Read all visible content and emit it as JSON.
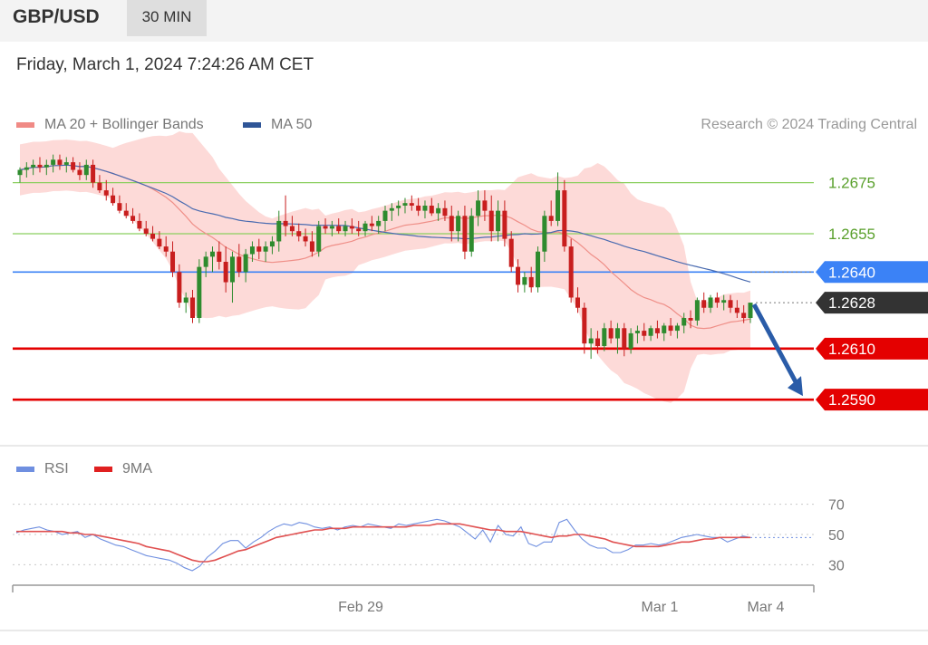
{
  "header": {
    "pair": "GBP/USD",
    "timeframe": "30 MIN",
    "datetime": "Friday, March 1, 2024 7:24:26 AM CET"
  },
  "legend": {
    "ma20": "MA 20 + Bollinger Bands",
    "ma50": "MA 50",
    "credit": "Research © 2024 Trading Central"
  },
  "rsi_legend": {
    "rsi": "RSI",
    "ma9": "9MA"
  },
  "colors": {
    "bull": "#2e8b2e",
    "bear": "#c81e1e",
    "band": "#fdd4d1",
    "ma20": "#ef8f88",
    "ma50": "#4a6bb0",
    "support": "#e40000",
    "resistance_green": "#8bcf5f",
    "pivot": "#3b82f6",
    "price_tag": "#333333",
    "arrow": "#2a5ca8",
    "rsi": "#6f8fe0",
    "rsi_ma": "#e05050"
  },
  "chart_data": [
    {
      "type": "candlestick",
      "title": "GBP/USD",
      "timeframe": "30 MIN",
      "ylim": [
        1.2578,
        1.2688
      ],
      "x_ticks": [
        "Feb 29",
        "Mar 1",
        "Mar 4"
      ],
      "levels": [
        {
          "value": "1.2675",
          "kind": "resistance"
        },
        {
          "value": "1.2655",
          "kind": "resistance"
        },
        {
          "value": "1.2640",
          "kind": "pivot"
        },
        {
          "value": "1.2628",
          "kind": "last-price"
        },
        {
          "value": "1.2610",
          "kind": "support"
        },
        {
          "value": "1.2590",
          "kind": "support"
        }
      ],
      "forecast": {
        "from": 1.2628,
        "to": 1.259,
        "direction": "down"
      },
      "candles": [
        [
          1.2678,
          1.2681,
          1.2675,
          1.268
        ],
        [
          1.268,
          1.2683,
          1.2677,
          1.2681
        ],
        [
          1.2681,
          1.2684,
          1.2678,
          1.2682
        ],
        [
          1.2682,
          1.2685,
          1.2679,
          1.2681
        ],
        [
          1.2681,
          1.2684,
          1.2678,
          1.2682
        ],
        [
          1.2682,
          1.2686,
          1.2679,
          1.2684
        ],
        [
          1.2684,
          1.2686,
          1.268,
          1.2682
        ],
        [
          1.2682,
          1.2685,
          1.2679,
          1.2683
        ],
        [
          1.2683,
          1.2685,
          1.2679,
          1.268
        ],
        [
          1.268,
          1.2683,
          1.2676,
          1.2678
        ],
        [
          1.2678,
          1.2684,
          1.2676,
          1.2682
        ],
        [
          1.2682,
          1.2684,
          1.2673,
          1.2675
        ],
        [
          1.2675,
          1.2678,
          1.2671,
          1.2672
        ],
        [
          1.2672,
          1.2676,
          1.2668,
          1.267
        ],
        [
          1.267,
          1.2673,
          1.2666,
          1.2667
        ],
        [
          1.2667,
          1.267,
          1.2663,
          1.2664
        ],
        [
          1.2664,
          1.2667,
          1.2661,
          1.2662
        ],
        [
          1.2662,
          1.2665,
          1.2659,
          1.266
        ],
        [
          1.266,
          1.2663,
          1.2656,
          1.2657
        ],
        [
          1.2657,
          1.266,
          1.2654,
          1.2655
        ],
        [
          1.2655,
          1.2658,
          1.2652,
          1.2653
        ],
        [
          1.2653,
          1.2656,
          1.2649,
          1.265
        ],
        [
          1.265,
          1.2654,
          1.2646,
          1.2648
        ],
        [
          1.2648,
          1.2652,
          1.2638,
          1.264
        ],
        [
          1.264,
          1.2643,
          1.2626,
          1.2628
        ],
        [
          1.2628,
          1.2632,
          1.2624,
          1.263
        ],
        [
          1.263,
          1.2633,
          1.262,
          1.2622
        ],
        [
          1.2622,
          1.2645,
          1.262,
          1.2642
        ],
        [
          1.2642,
          1.2648,
          1.2638,
          1.2646
        ],
        [
          1.2646,
          1.265,
          1.264,
          1.2648
        ],
        [
          1.2648,
          1.2652,
          1.2641,
          1.2644
        ],
        [
          1.2644,
          1.265,
          1.2632,
          1.2636
        ],
        [
          1.2636,
          1.2648,
          1.2628,
          1.2646
        ],
        [
          1.2646,
          1.2651,
          1.2638,
          1.264
        ],
        [
          1.264,
          1.2649,
          1.2636,
          1.2647
        ],
        [
          1.2647,
          1.2652,
          1.2644,
          1.265
        ],
        [
          1.265,
          1.2653,
          1.2645,
          1.2648
        ],
        [
          1.2648,
          1.2652,
          1.2644,
          1.265
        ],
        [
          1.265,
          1.2654,
          1.2647,
          1.2652
        ],
        [
          1.2652,
          1.2664,
          1.2648,
          1.266
        ],
        [
          1.266,
          1.267,
          1.2654,
          1.2658
        ],
        [
          1.2658,
          1.2662,
          1.2654,
          1.2656
        ],
        [
          1.2656,
          1.2659,
          1.2652,
          1.2654
        ],
        [
          1.2654,
          1.2657,
          1.265,
          1.2652
        ],
        [
          1.2652,
          1.2656,
          1.2646,
          1.2648
        ],
        [
          1.2648,
          1.266,
          1.2646,
          1.2658
        ],
        [
          1.2658,
          1.2661,
          1.2655,
          1.2657
        ],
        [
          1.2657,
          1.266,
          1.2654,
          1.2658
        ],
        [
          1.2658,
          1.2661,
          1.2655,
          1.2656
        ],
        [
          1.2656,
          1.266,
          1.2654,
          1.2658
        ],
        [
          1.2658,
          1.2661,
          1.2655,
          1.2657
        ],
        [
          1.2657,
          1.266,
          1.2654,
          1.2656
        ],
        [
          1.2656,
          1.266,
          1.2654,
          1.2659
        ],
        [
          1.2659,
          1.2662,
          1.2656,
          1.2658
        ],
        [
          1.2658,
          1.2662,
          1.2655,
          1.266
        ],
        [
          1.266,
          1.2666,
          1.2656,
          1.2664
        ],
        [
          1.2664,
          1.2667,
          1.266,
          1.2665
        ],
        [
          1.2665,
          1.2668,
          1.2662,
          1.2666
        ],
        [
          1.2666,
          1.2669,
          1.2663,
          1.2667
        ],
        [
          1.2667,
          1.267,
          1.2664,
          1.2666
        ],
        [
          1.2666,
          1.2669,
          1.2662,
          1.2664
        ],
        [
          1.2664,
          1.2668,
          1.2661,
          1.2666
        ],
        [
          1.2666,
          1.2669,
          1.2662,
          1.2663
        ],
        [
          1.2663,
          1.2667,
          1.266,
          1.2665
        ],
        [
          1.2665,
          1.2668,
          1.266,
          1.2662
        ],
        [
          1.2662,
          1.2666,
          1.2652,
          1.2656
        ],
        [
          1.2656,
          1.2664,
          1.2652,
          1.2662
        ],
        [
          1.2662,
          1.2666,
          1.2645,
          1.2648
        ],
        [
          1.2648,
          1.2665,
          1.2646,
          1.2662
        ],
        [
          1.2662,
          1.2672,
          1.2658,
          1.2668
        ],
        [
          1.2668,
          1.2672,
          1.266,
          1.2664
        ],
        [
          1.2664,
          1.267,
          1.2652,
          1.2656
        ],
        [
          1.2656,
          1.2668,
          1.2652,
          1.2664
        ],
        [
          1.2664,
          1.2668,
          1.265,
          1.2653
        ],
        [
          1.2653,
          1.2656,
          1.264,
          1.2642
        ],
        [
          1.2642,
          1.2645,
          1.2632,
          1.2635
        ],
        [
          1.2635,
          1.264,
          1.2632,
          1.2638
        ],
        [
          1.2638,
          1.2642,
          1.2632,
          1.2634
        ],
        [
          1.2634,
          1.265,
          1.2632,
          1.2648
        ],
        [
          1.2648,
          1.2664,
          1.2644,
          1.2662
        ],
        [
          1.2662,
          1.2668,
          1.2658,
          1.266
        ],
        [
          1.266,
          1.2679,
          1.2658,
          1.2672
        ],
        [
          1.2672,
          1.2676,
          1.2648,
          1.265
        ],
        [
          1.265,
          1.2653,
          1.2628,
          1.263
        ],
        [
          1.263,
          1.2634,
          1.2624,
          1.2626
        ],
        [
          1.2626,
          1.2628,
          1.2608,
          1.2612
        ],
        [
          1.2612,
          1.2618,
          1.2606,
          1.2614
        ],
        [
          1.2614,
          1.2617,
          1.2608,
          1.2611
        ],
        [
          1.2611,
          1.262,
          1.2609,
          1.2618
        ],
        [
          1.2618,
          1.2621,
          1.2612,
          1.2614
        ],
        [
          1.2614,
          1.262,
          1.2608,
          1.2618
        ],
        [
          1.2618,
          1.262,
          1.2607,
          1.261
        ],
        [
          1.261,
          1.2618,
          1.2608,
          1.2616
        ],
        [
          1.2616,
          1.2619,
          1.2612,
          1.2617
        ],
        [
          1.2617,
          1.262,
          1.2613,
          1.2615
        ],
        [
          1.2615,
          1.2619,
          1.2613,
          1.2618
        ],
        [
          1.2618,
          1.2621,
          1.2614,
          1.2616
        ],
        [
          1.2616,
          1.262,
          1.2613,
          1.2619
        ],
        [
          1.2619,
          1.2622,
          1.2615,
          1.2617
        ],
        [
          1.2617,
          1.262,
          1.2614,
          1.2619
        ],
        [
          1.2619,
          1.2624,
          1.2616,
          1.2622
        ],
        [
          1.2622,
          1.2625,
          1.2618,
          1.2621
        ],
        [
          1.2621,
          1.263,
          1.2619,
          1.2629
        ],
        [
          1.2629,
          1.2632,
          1.2624,
          1.2626
        ],
        [
          1.2626,
          1.2631,
          1.2624,
          1.263
        ],
        [
          1.263,
          1.2632,
          1.2626,
          1.2628
        ],
        [
          1.2628,
          1.2631,
          1.2625,
          1.2629
        ],
        [
          1.2629,
          1.2631,
          1.2624,
          1.2626
        ],
        [
          1.2626,
          1.2629,
          1.2622,
          1.2624
        ],
        [
          1.2624,
          1.2627,
          1.262,
          1.2622
        ],
        [
          1.2622,
          1.2628,
          1.262,
          1.2628
        ]
      ]
    },
    {
      "type": "line",
      "title": "RSI",
      "ylim": [
        20,
        80
      ],
      "y_ticks": [
        "70",
        "50",
        "30"
      ],
      "series": [
        {
          "name": "RSI",
          "values": [
            51,
            53,
            54,
            55,
            53,
            52,
            50,
            51,
            52,
            48,
            50,
            47,
            45,
            43,
            42,
            40,
            38,
            36,
            35,
            34,
            33,
            31,
            28,
            26,
            29,
            35,
            39,
            44,
            46,
            46,
            41,
            45,
            48,
            52,
            55,
            57,
            56,
            58,
            57,
            55,
            54,
            55,
            53,
            55,
            56,
            55,
            57,
            56,
            55,
            54,
            57,
            56,
            57,
            58,
            59,
            60,
            59,
            57,
            55,
            51,
            47,
            53,
            45,
            56,
            50,
            49,
            55,
            44,
            42,
            45,
            45,
            58,
            60,
            53,
            47,
            43,
            41,
            41,
            38,
            38,
            40,
            43,
            43,
            44,
            43,
            44,
            46,
            48,
            49,
            50,
            49,
            48,
            48,
            45,
            47,
            49,
            48
          ]
        },
        {
          "name": "9MA",
          "values": [
            52,
            52,
            52,
            52,
            52,
            52,
            52,
            51,
            51,
            50,
            50,
            49,
            48,
            47,
            46,
            45,
            44,
            42,
            41,
            40,
            39,
            37,
            35,
            33,
            32,
            32,
            33,
            35,
            37,
            39,
            40,
            42,
            44,
            46,
            48,
            49,
            50,
            51,
            52,
            53,
            53,
            54,
            54,
            54,
            55,
            55,
            55,
            55,
            55,
            55,
            55,
            55,
            56,
            56,
            56,
            57,
            57,
            57,
            57,
            56,
            55,
            54,
            53,
            53,
            52,
            52,
            52,
            51,
            50,
            49,
            48,
            49,
            49,
            50,
            50,
            49,
            48,
            47,
            45,
            44,
            43,
            42,
            42,
            42,
            42,
            43,
            44,
            45,
            45,
            46,
            47,
            47,
            48,
            48,
            48,
            48,
            48
          ]
        }
      ]
    }
  ]
}
